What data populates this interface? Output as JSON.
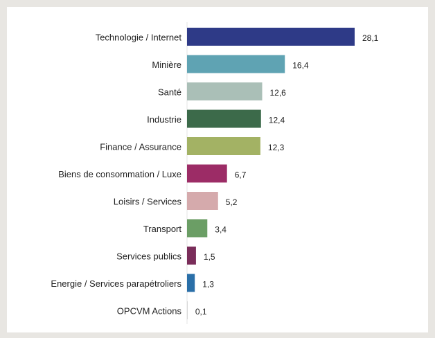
{
  "chart_data": {
    "type": "bar",
    "orientation": "horizontal",
    "categories": [
      "Technologie / Internet",
      "Minière",
      "Santé",
      "Industrie",
      "Finance / Assurance",
      "Biens de consommation / Luxe",
      "Loisirs / Services",
      "Transport",
      "Services publics",
      "Energie / Services parapétroliers",
      "OPCVM Actions"
    ],
    "values": [
      28.1,
      16.4,
      12.6,
      12.4,
      12.3,
      6.7,
      5.2,
      3.4,
      1.5,
      1.3,
      0.1
    ],
    "value_labels": [
      "28,1",
      "16,4",
      "12,6",
      "12,4",
      "12,3",
      "6,7",
      "5,2",
      "3,4",
      "1,5",
      "1,3",
      "0,1"
    ],
    "colors": [
      "#2e3a87",
      "#5fa3b3",
      "#aabfb7",
      "#3c6a4a",
      "#a3b264",
      "#9c2c66",
      "#d5aaac",
      "#6b9e65",
      "#7a2d5a",
      "#2a6fa8",
      "#cfcfcf"
    ]
  }
}
